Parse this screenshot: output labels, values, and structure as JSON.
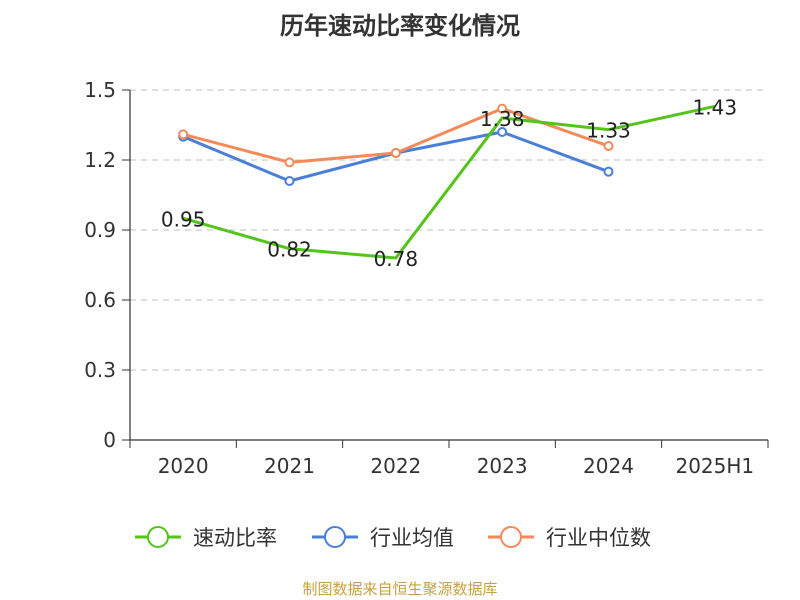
{
  "chart_data": {
    "type": "line",
    "title": "历年速动比率变化情况",
    "categories": [
      "2020",
      "2021",
      "2022",
      "2023",
      "2024",
      "2025H1"
    ],
    "ylim": [
      0,
      1.5
    ],
    "yticks": [
      "0",
      "0.3",
      "0.6",
      "0.9",
      "1.2",
      "1.5"
    ],
    "grid": true,
    "legend_position": "bottom",
    "series": [
      {
        "name": "速动比率",
        "color": "#52c41a",
        "values": [
          0.95,
          0.82,
          0.78,
          1.38,
          1.33,
          1.43
        ],
        "labels": [
          "0.95",
          "0.82",
          "0.78",
          "1.38",
          "1.33",
          "1.43"
        ]
      },
      {
        "name": "行业均值",
        "color": "#4a7fd8",
        "values": [
          1.3,
          1.11,
          1.23,
          1.32,
          1.15,
          null
        ]
      },
      {
        "name": "行业中位数",
        "color": "#f5895a",
        "values": [
          1.31,
          1.19,
          1.23,
          1.42,
          1.26,
          null
        ]
      }
    ],
    "source": "制图数据来自恒生聚源数据库"
  }
}
